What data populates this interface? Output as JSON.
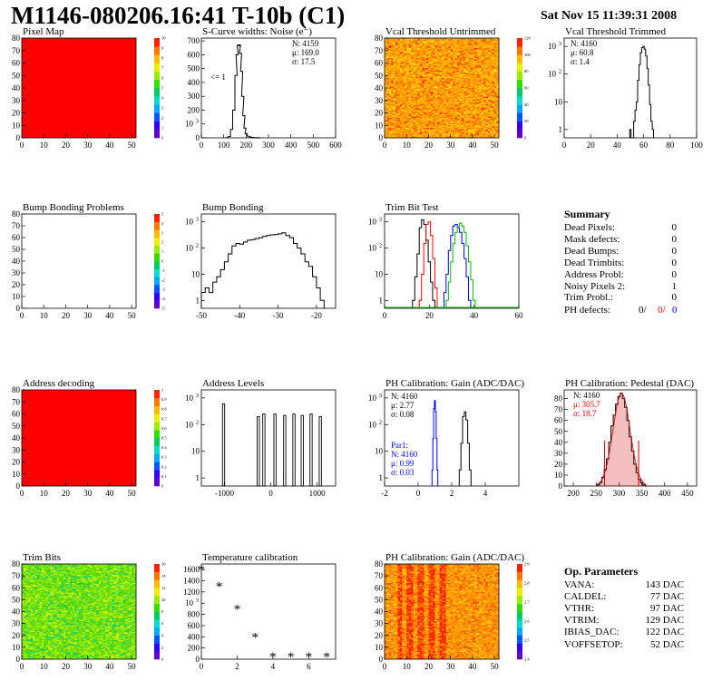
{
  "title": "M1146-080206.16:41 T-10b (C1)",
  "timestamp": "Sat Nov 15 11:39:31 2008",
  "chart_data": [
    {
      "id": "pixel-map",
      "type": "heatmap",
      "title": "Pixel Map",
      "fill": "uniform-red",
      "x_ticks": [
        "0",
        "10",
        "20",
        "30",
        "40",
        "50"
      ],
      "y_ticks": [
        "0",
        "10",
        "20",
        "30",
        "40",
        "50",
        "60",
        "70",
        "80"
      ],
      "xlim": [
        0,
        52
      ],
      "ylim": [
        0,
        80
      ],
      "palette_ticks": [
        "0",
        "1",
        "2",
        "3",
        "4",
        "5",
        "6",
        "7",
        "8",
        "9",
        "10"
      ]
    },
    {
      "id": "s-curve",
      "type": "histogram",
      "title": "S-Curve widths: Noise (e⁻)",
      "x_ticks": [
        "0",
        "100",
        "200",
        "300",
        "400",
        "500",
        "600"
      ],
      "y_ticks": [
        "0",
        "100",
        "200",
        "300",
        "400",
        "500",
        "600",
        "700"
      ],
      "xlim": [
        0,
        600
      ],
      "ylim": [
        0,
        720
      ],
      "x": [
        115,
        125,
        135,
        145,
        155,
        160,
        165,
        170,
        175,
        180,
        185,
        190,
        195,
        200,
        210,
        220,
        230,
        240,
        250,
        260
      ],
      "values": [
        2,
        10,
        60,
        200,
        450,
        600,
        665,
        670,
        610,
        480,
        300,
        160,
        70,
        30,
        12,
        6,
        3,
        2,
        1,
        0
      ],
      "annotation": "<= 1",
      "stats": [
        "N: 4159",
        "μ: 169.0",
        "σ: 17.5"
      ]
    },
    {
      "id": "vcal-untrimmed",
      "type": "heatmap",
      "title": "Vcal Threshold Untrimmed",
      "fill": "noise-orange",
      "x_ticks": [
        "0",
        "10",
        "20",
        "30",
        "40",
        "50"
      ],
      "y_ticks": [
        "0",
        "10",
        "20",
        "30",
        "40",
        "50",
        "60",
        "70",
        "80"
      ],
      "xlim": [
        0,
        52
      ],
      "ylim": [
        0,
        80
      ],
      "palette_ticks": [
        "0",
        "20",
        "40",
        "60",
        "80",
        "100",
        "120"
      ]
    },
    {
      "id": "vcal-trimmed",
      "type": "histogram",
      "title": "Vcal Threshold Trimmed",
      "x_ticks": [
        "0",
        "20",
        "40",
        "60",
        "80",
        "100"
      ],
      "y_ticks": [
        "1",
        "10",
        "10²",
        "10³"
      ],
      "xlim": [
        0,
        100
      ],
      "log": true,
      "ylim": [
        0.5,
        2000
      ],
      "x": [
        50,
        51,
        52,
        53,
        54,
        55,
        56,
        57,
        58,
        59,
        60,
        61,
        62,
        63,
        64,
        65,
        66,
        67
      ],
      "values": [
        1,
        0,
        0,
        2,
        5,
        10,
        60,
        220,
        600,
        900,
        1000,
        800,
        450,
        160,
        40,
        8,
        2,
        1
      ],
      "stats": [
        "N: 4160",
        "μ: 60.8",
        "σ:  1.4"
      ]
    },
    {
      "id": "bump-problems",
      "type": "heatmap",
      "title": "Bump Bonding Problems",
      "fill": "empty",
      "x_ticks": [
        "0",
        "10",
        "20",
        "30",
        "40",
        "50"
      ],
      "y_ticks": [
        "0",
        "10",
        "20",
        "30",
        "40",
        "50",
        "60",
        "70",
        "80"
      ],
      "xlim": [
        0,
        52
      ],
      "ylim": [
        0,
        80
      ],
      "palette_ticks": [
        "-5",
        "-4",
        "-3",
        "-2",
        "-1",
        "0",
        "1",
        "2",
        "3",
        "4",
        "5"
      ]
    },
    {
      "id": "bump-bonding",
      "type": "histogram",
      "title": "Bump Bonding",
      "x_ticks": [
        "-50",
        "-40",
        "-30",
        "-20"
      ],
      "y_ticks": [
        "1",
        "10",
        "10²",
        "10³"
      ],
      "xlim": [
        -50,
        -15
      ],
      "log": true,
      "ylim": [
        0.5,
        2000
      ],
      "x": [
        -49.5,
        -48.5,
        -47.5,
        -46.5,
        -45.5,
        -44.5,
        -43.5,
        -42.5,
        -41.5,
        -40.5,
        -39.5,
        -38.5,
        -37.5,
        -36.5,
        -35.5,
        -34.5,
        -33.5,
        -32.5,
        -31.5,
        -30.5,
        -29.5,
        -28.5,
        -27.5,
        -26.5,
        -25.5,
        -24.5,
        -23.5,
        -22.5,
        -21.5,
        -20.5,
        -19.5,
        -18.5
      ],
      "values": [
        2,
        3,
        2,
        5,
        8,
        15,
        30,
        60,
        120,
        150,
        140,
        170,
        200,
        210,
        230,
        250,
        280,
        300,
        320,
        330,
        350,
        380,
        300,
        250,
        150,
        100,
        60,
        30,
        20,
        8,
        3,
        1
      ]
    },
    {
      "id": "trim-bit-test",
      "type": "histogram",
      "title": "Trim Bit Test",
      "x_ticks": [
        "0",
        "20",
        "40",
        "60"
      ],
      "y_ticks": [
        "1",
        "10",
        "10²",
        "10³"
      ],
      "xlim": [
        0,
        60
      ],
      "log": true,
      "ylim": [
        0.5,
        2000
      ],
      "series": [
        {
          "color": "#000000",
          "x": [
            13,
            14,
            15,
            16,
            17,
            18,
            19,
            20,
            21,
            22
          ],
          "values": [
            1,
            8,
            60,
            600,
            1200,
            800,
            200,
            30,
            5,
            1
          ]
        },
        {
          "color": "#ff0000",
          "x": [
            16,
            17,
            18,
            19,
            20,
            21,
            22,
            23
          ],
          "values": [
            1,
            10,
            150,
            800,
            1000,
            300,
            40,
            3
          ]
        },
        {
          "color": "#0000ff",
          "x": [
            27,
            28,
            29,
            30,
            31,
            32,
            33,
            34,
            35,
            36,
            37,
            38
          ],
          "values": [
            2,
            10,
            80,
            300,
            700,
            800,
            600,
            400,
            150,
            40,
            8,
            1
          ]
        },
        {
          "color": "#00bb00",
          "x": [
            28,
            29,
            30,
            31,
            32,
            33,
            34,
            35,
            36,
            37,
            38,
            39,
            40
          ],
          "values": [
            1,
            5,
            30,
            150,
            400,
            700,
            900,
            700,
            400,
            120,
            30,
            6,
            1
          ]
        }
      ]
    },
    {
      "id": "address-decoding",
      "type": "heatmap",
      "title": "Address decoding",
      "fill": "uniform-red",
      "x_ticks": [
        "0",
        "10",
        "20",
        "30",
        "40",
        "50"
      ],
      "y_ticks": [
        "0",
        "10",
        "20",
        "30",
        "40",
        "50",
        "60",
        "70",
        "80"
      ],
      "xlim": [
        0,
        52
      ],
      "ylim": [
        0,
        80
      ],
      "palette_ticks": [
        "0",
        "0.1",
        "0.2",
        "0.3",
        "0.4",
        "0.5",
        "0.6",
        "0.7",
        "0.8",
        "0.9",
        "1"
      ]
    },
    {
      "id": "address-levels",
      "type": "histogram",
      "title": "Address Levels",
      "x_ticks": [
        "-1000",
        "0",
        "1000"
      ],
      "y_ticks": [
        "1",
        "10",
        "10²",
        "10³"
      ],
      "xlim": [
        -1500,
        1400
      ],
      "log": true,
      "ylim": [
        0.5,
        2000
      ],
      "spikes": [
        {
          "x": -1020,
          "v": 600
        },
        {
          "x": -270,
          "v": 200
        },
        {
          "x": -150,
          "v": 250
        },
        {
          "x": 90,
          "v": 250
        },
        {
          "x": 300,
          "v": 220
        },
        {
          "x": 500,
          "v": 250
        },
        {
          "x": 680,
          "v": 220
        },
        {
          "x": 870,
          "v": 250
        },
        {
          "x": 1070,
          "v": 200
        }
      ]
    },
    {
      "id": "ph-gain",
      "type": "histogram",
      "title": "PH Calibration: Gain (ADC/DAC)",
      "x_ticks": [
        "-2",
        "0",
        "2",
        "4"
      ],
      "y_ticks": [
        "1",
        "10",
        "10²",
        "10³"
      ],
      "xlim": [
        -2,
        6
      ],
      "log": true,
      "ylim": [
        0.5,
        2000
      ],
      "series": [
        {
          "color": "#000000",
          "x": [
            2.5,
            2.6,
            2.7,
            2.8,
            2.9,
            3.0,
            3.1
          ],
          "values": [
            2,
            20,
            200,
            300,
            150,
            20,
            2
          ]
        },
        {
          "color": "#0000ff",
          "x": [
            0.85,
            0.9,
            0.95,
            1.0,
            1.05,
            1.1,
            1.15
          ],
          "values": [
            2,
            30,
            400,
            800,
            300,
            30,
            2
          ]
        }
      ],
      "stats_black": [
        "N: 4160",
        "μ: 2.77",
        "σ: 0.08"
      ],
      "stats_blue": [
        "Par1:",
        "N: 4160",
        "μ: 0.99",
        "σ: 0.03"
      ]
    },
    {
      "id": "ph-pedestal",
      "type": "histogram",
      "title": "PH Calibration: Pedestal (DAC)",
      "x_ticks": [
        "200",
        "250",
        "300",
        "350",
        "400",
        "450"
      ],
      "y_ticks": [
        "0",
        "10",
        "20",
        "30",
        "40",
        "50",
        "60",
        "70",
        "80"
      ],
      "xlim": [
        180,
        470
      ],
      "ylim": [
        0,
        88
      ],
      "x": [
        255,
        260,
        265,
        270,
        275,
        280,
        285,
        290,
        295,
        300,
        305,
        310,
        315,
        320,
        325,
        330,
        335,
        340,
        345,
        350,
        355,
        360
      ],
      "values": [
        1,
        3,
        8,
        15,
        25,
        40,
        55,
        65,
        75,
        82,
        85,
        80,
        72,
        60,
        45,
        32,
        20,
        12,
        6,
        3,
        1,
        0
      ],
      "stats": [
        "N: 4160",
        "μ: 305.7",
        "σ: 18.7"
      ]
    },
    {
      "id": "trim-bits",
      "type": "heatmap",
      "title": "Trim Bits",
      "fill": "noise-green",
      "x_ticks": [
        "0",
        "10",
        "20",
        "30",
        "40",
        "50"
      ],
      "y_ticks": [
        "0",
        "10",
        "20",
        "30",
        "40",
        "50",
        "60",
        "70",
        "80"
      ],
      "xlim": [
        0,
        52
      ],
      "ylim": [
        0,
        80
      ],
      "palette_ticks": [
        "0",
        "2",
        "4",
        "6",
        "8",
        "10",
        "12",
        "14",
        "16"
      ]
    },
    {
      "id": "temperature",
      "type": "scatter",
      "title": "Temperature calibration",
      "x_ticks": [
        "0",
        "2",
        "4",
        "6"
      ],
      "y_ticks": [
        "0",
        "200",
        "400",
        "600",
        "800",
        "1000",
        "1200",
        "1400",
        "1600"
      ],
      "xlim": [
        0,
        7.5
      ],
      "ylim": [
        0,
        1700
      ],
      "x": [
        0,
        1,
        2,
        3,
        4,
        5,
        6,
        7
      ],
      "values": [
        1600,
        1300,
        900,
        400,
        50,
        50,
        50,
        50
      ]
    },
    {
      "id": "ph-gain-map",
      "type": "heatmap",
      "title": "PH Calibration: Gain (ADC/DAC)",
      "fill": "noise-red-stripes",
      "x_ticks": [
        "0",
        "10",
        "20",
        "30",
        "40",
        "50"
      ],
      "y_ticks": [
        "0",
        "10",
        "20",
        "30",
        "40",
        "50",
        "60",
        "70",
        "80"
      ],
      "xlim": [
        0,
        52
      ],
      "ylim": [
        0,
        80
      ],
      "palette_ticks": [
        "2.4",
        "2.5",
        "2.6",
        "2.7",
        "2.8",
        "2.9"
      ]
    }
  ],
  "summary": {
    "heading": "Summary",
    "rows": [
      {
        "label": "Dead Pixels:",
        "value": "0"
      },
      {
        "label": "Mask defects:",
        "value": "0"
      },
      {
        "label": "Dead Bumps:",
        "value": "0"
      },
      {
        "label": "Dead Trimbits:",
        "value": "0"
      },
      {
        "label": "Address Probl:",
        "value": "0"
      },
      {
        "label": "Noisy Pixels 2:",
        "value": "1"
      },
      {
        "label": "Trim Probl.:",
        "value": "0"
      }
    ],
    "ph_label": "PH defects:",
    "ph_values": [
      "0/",
      "0/",
      "0"
    ],
    "ph_colors": [
      "#000000",
      "#ff0000",
      "#0000ff"
    ]
  },
  "op_params": {
    "heading": "Op. Parameters",
    "rows": [
      {
        "label": "VANA:",
        "value": "143 DAC"
      },
      {
        "label": "CALDEL:",
        "value": "77 DAC"
      },
      {
        "label": "VTHR:",
        "value": "97 DAC"
      },
      {
        "label": "VTRIM:",
        "value": "129 DAC"
      },
      {
        "label": "IBIAS_DAC:",
        "value": "122 DAC"
      },
      {
        "label": "VOFFSETOP:",
        "value": "52 DAC"
      }
    ]
  },
  "colors": {
    "red_fill": "#ff0000",
    "pedestal_fill": "#cc0000"
  }
}
